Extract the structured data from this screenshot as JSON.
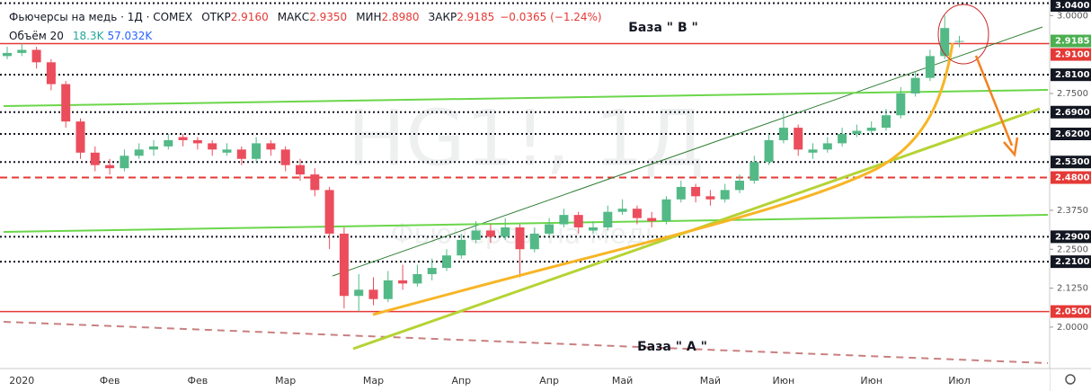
{
  "header": {
    "title": "Фьючерсы на медь · 1Д · COMEX",
    "stats": [
      {
        "label": "ОТКР",
        "value": "2.9160"
      },
      {
        "label": "МАКС",
        "value": "2.9350"
      },
      {
        "label": "МИН",
        "value": "2.8980"
      },
      {
        "label": "ЗАКР",
        "value": "2.9185"
      }
    ],
    "change": "−0.0365 (−1.24%)",
    "volume_label": "Объём 20",
    "volume_values": [
      "18.3K",
      "57.032K"
    ]
  },
  "chart_data": {
    "type": "candlestick",
    "watermark": [
      "HG1!, 1Д",
      "Фьючерсы на медь"
    ],
    "annotations": [
      "База \" В \"",
      "База \" А \""
    ],
    "up_color": "#53b987",
    "down_color": "#eb4d5c",
    "ylim": [
      1.867,
      3.05
    ],
    "yticks": [
      {
        "value": 3,
        "label": "3.0000"
      },
      {
        "value": 2.75,
        "label": "2.7500"
      },
      {
        "value": 2.375,
        "label": "2.3750"
      },
      {
        "value": 2.25,
        "label": "2.2500"
      },
      {
        "value": 2.125,
        "label": "2.1250"
      },
      {
        "value": 2,
        "label": "2.0000"
      }
    ],
    "levels": [
      {
        "value": 3.04,
        "label": "3.0400",
        "color": "#131722",
        "style": "dotted"
      },
      {
        "value": 2.9185,
        "label": "2.9185",
        "color": "#4caf50",
        "style": "none"
      },
      {
        "value": 2.91,
        "label": "2.9100",
        "color": "#e53935",
        "style": "solid"
      },
      {
        "value": 2.81,
        "label": "2.8100",
        "color": "#131722",
        "style": "dotted"
      },
      {
        "value": 2.69,
        "label": "2.6900",
        "color": "#131722",
        "style": "dotted"
      },
      {
        "value": 2.62,
        "label": "2.6200",
        "color": "#131722",
        "style": "dotted"
      },
      {
        "value": 2.53,
        "label": "2.5300",
        "color": "#131722",
        "style": "dotted"
      },
      {
        "value": 2.48,
        "label": "2.4800",
        "color": "#e53935",
        "style": "dashed"
      },
      {
        "value": 2.29,
        "label": "2.2900",
        "color": "#131722",
        "style": "dotted"
      },
      {
        "value": 2.21,
        "label": "2.2100",
        "color": "#131722",
        "style": "dotted"
      },
      {
        "value": 2.05,
        "label": "2.0500",
        "color": "#e53935",
        "style": "solid"
      }
    ],
    "categories": [
      null,
      "2020",
      null,
      null,
      null,
      null,
      null,
      "Фев",
      null,
      null,
      null,
      null,
      null,
      "Фев",
      null,
      null,
      null,
      null,
      null,
      "Мар",
      null,
      null,
      null,
      null,
      null,
      "Мар",
      null,
      null,
      null,
      null,
      null,
      "Апр",
      null,
      null,
      null,
      null,
      null,
      "Апр",
      null,
      null,
      null,
      null,
      "Май",
      null,
      null,
      null,
      null,
      null,
      "Май",
      null,
      null,
      null,
      null,
      "Июн",
      null,
      null,
      null,
      null,
      null,
      "Июн",
      null,
      null,
      null,
      null,
      null,
      "Июл"
    ],
    "open": [
      2.87,
      2.88,
      2.89,
      2.85,
      2.78,
      2.66,
      2.56,
      2.52,
      2.51,
      2.55,
      2.57,
      2.58,
      2.61,
      2.6,
      2.59,
      2.56,
      2.57,
      2.54,
      2.59,
      2.57,
      2.52,
      2.49,
      2.44,
      2.3,
      2.1,
      2.12,
      2.09,
      2.15,
      2.14,
      2.17,
      2.19,
      2.23,
      2.28,
      2.31,
      2.29,
      2.32,
      2.25,
      2.3,
      2.33,
      2.36,
      2.31,
      2.32,
      2.37,
      2.38,
      2.35,
      2.34,
      2.41,
      2.45,
      2.42,
      2.41,
      2.44,
      2.47,
      2.53,
      2.6,
      2.64,
      2.56,
      2.57,
      2.59,
      2.62,
      2.63,
      2.64,
      2.68,
      2.75,
      2.8,
      2.87,
      2.916
    ],
    "high": [
      2.9,
      2.91,
      2.9,
      2.86,
      2.79,
      2.67,
      2.58,
      2.54,
      2.57,
      2.59,
      2.6,
      2.62,
      2.62,
      2.61,
      2.6,
      2.59,
      2.58,
      2.61,
      2.6,
      2.58,
      2.54,
      2.51,
      2.45,
      2.32,
      2.17,
      2.16,
      2.18,
      2.2,
      2.2,
      2.22,
      2.25,
      2.3,
      2.34,
      2.33,
      2.35,
      2.33,
      2.32,
      2.35,
      2.38,
      2.37,
      2.34,
      2.39,
      2.41,
      2.39,
      2.37,
      2.42,
      2.47,
      2.46,
      2.44,
      2.46,
      2.49,
      2.55,
      2.62,
      2.69,
      2.65,
      2.59,
      2.61,
      2.64,
      2.65,
      2.66,
      2.7,
      2.77,
      2.82,
      2.89,
      3.0,
      2.935
    ],
    "low": [
      2.86,
      2.87,
      2.83,
      2.76,
      2.64,
      2.54,
      2.5,
      2.49,
      2.5,
      2.54,
      2.55,
      2.57,
      2.58,
      2.57,
      2.55,
      2.55,
      2.52,
      2.53,
      2.55,
      2.5,
      2.47,
      2.42,
      2.25,
      2.06,
      2.05,
      2.07,
      2.08,
      2.12,
      2.13,
      2.15,
      2.18,
      2.22,
      2.27,
      2.27,
      2.28,
      2.16,
      2.24,
      2.29,
      2.32,
      2.3,
      2.3,
      2.31,
      2.36,
      2.33,
      2.32,
      2.33,
      2.4,
      2.4,
      2.39,
      2.4,
      2.43,
      2.46,
      2.52,
      2.59,
      2.55,
      2.54,
      2.56,
      2.58,
      2.61,
      2.62,
      2.63,
      2.67,
      2.74,
      2.79,
      2.86,
      2.898
    ],
    "close": [
      2.88,
      2.89,
      2.85,
      2.78,
      2.66,
      2.56,
      2.52,
      2.51,
      2.55,
      2.57,
      2.58,
      2.6,
      2.6,
      2.59,
      2.57,
      2.57,
      2.54,
      2.59,
      2.57,
      2.52,
      2.49,
      2.44,
      2.3,
      2.1,
      2.12,
      2.09,
      2.15,
      2.14,
      2.17,
      2.19,
      2.23,
      2.28,
      2.31,
      2.29,
      2.32,
      2.25,
      2.3,
      2.33,
      2.36,
      2.32,
      2.32,
      2.37,
      2.38,
      2.35,
      2.34,
      2.41,
      2.45,
      2.42,
      2.41,
      2.44,
      2.47,
      2.53,
      2.6,
      2.64,
      2.57,
      2.57,
      2.59,
      2.62,
      2.63,
      2.64,
      2.68,
      2.75,
      2.8,
      2.87,
      2.96,
      2.9185
    ]
  }
}
